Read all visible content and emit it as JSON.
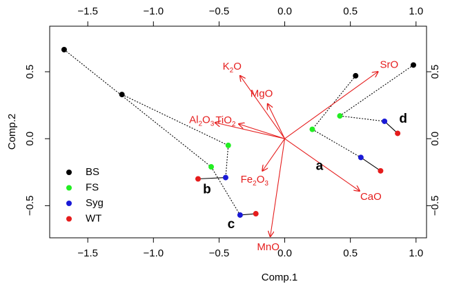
{
  "chart_data": {
    "type": "biplot",
    "xlabel": "Comp.1",
    "ylabel": "Comp.2",
    "xlim": [
      -1.79,
      1.08
    ],
    "ylim": [
      -0.74,
      0.84
    ],
    "xticks": [
      {
        "value": -1.5,
        "label": "−1.5"
      },
      {
        "value": -1.0,
        "label": "−1.0"
      },
      {
        "value": -0.5,
        "label": "−0.5"
      },
      {
        "value": 0,
        "label": "0.0"
      },
      0.5,
      {
        "value": 1.0,
        "label": "1.0"
      }
    ],
    "yticks": [
      {
        "value": -0.5,
        "label": "−0.5"
      },
      {
        "value": 0,
        "label": "0.0"
      },
      0.5
    ],
    "x2lim": [
      -1.79,
      1.08
    ],
    "y2lim": [
      -0.74,
      0.84
    ],
    "x2ticks": [
      {
        "value": -1.5,
        "label": "−1.5"
      },
      {
        "value": -1.0,
        "label": "−1.0"
      },
      {
        "value": -0.5,
        "label": "−0.5"
      },
      {
        "value": 0,
        "label": "0.0"
      },
      0.5,
      {
        "value": 1.0,
        "label": "1.0"
      }
    ],
    "y2ticks": [
      {
        "value": -0.5,
        "label": "−0.5"
      },
      {
        "value": 0,
        "label": "0.0"
      },
      0.5
    ],
    "legend": "bottom-left",
    "groups": [
      "a",
      "b",
      "c",
      "d"
    ],
    "series": [
      {
        "name": "BS",
        "color": "#000000",
        "x": [
          0.54,
          -1.24,
          -1.68,
          0.98
        ],
        "values": [
          0.47,
          0.33,
          0.665,
          0.55
        ]
      },
      {
        "name": "FS",
        "color": "#22ee22",
        "x": [
          0.21,
          -0.43,
          -0.56,
          0.42
        ],
        "values": [
          0.07,
          -0.05,
          -0.21,
          0.17
        ]
      },
      {
        "name": "Syg",
        "color": "#1a1ad6",
        "x": [
          0.58,
          -0.45,
          -0.34,
          0.76
        ],
        "values": [
          -0.14,
          -0.29,
          -0.57,
          0.13
        ]
      },
      {
        "name": "WT",
        "color": "#e51c1c",
        "x": [
          0.73,
          -0.66,
          -0.22,
          0.86
        ],
        "values": [
          -0.24,
          -0.3,
          -0.56,
          0.04
        ]
      }
    ],
    "loadings": {
      "color": "#e51c1c",
      "names": [
        "K2O",
        "MgO",
        "TiO2",
        "Al2O3",
        "Fe2O3",
        "MnO",
        "CaO",
        "SrO"
      ],
      "x": [
        -0.34,
        -0.13,
        -0.35,
        -0.53,
        -0.17,
        -0.11,
        0.57,
        0.71
      ],
      "values": [
        0.47,
        0.26,
        0.11,
        0.12,
        -0.24,
        -0.73,
        -0.39,
        0.5
      ]
    }
  }
}
